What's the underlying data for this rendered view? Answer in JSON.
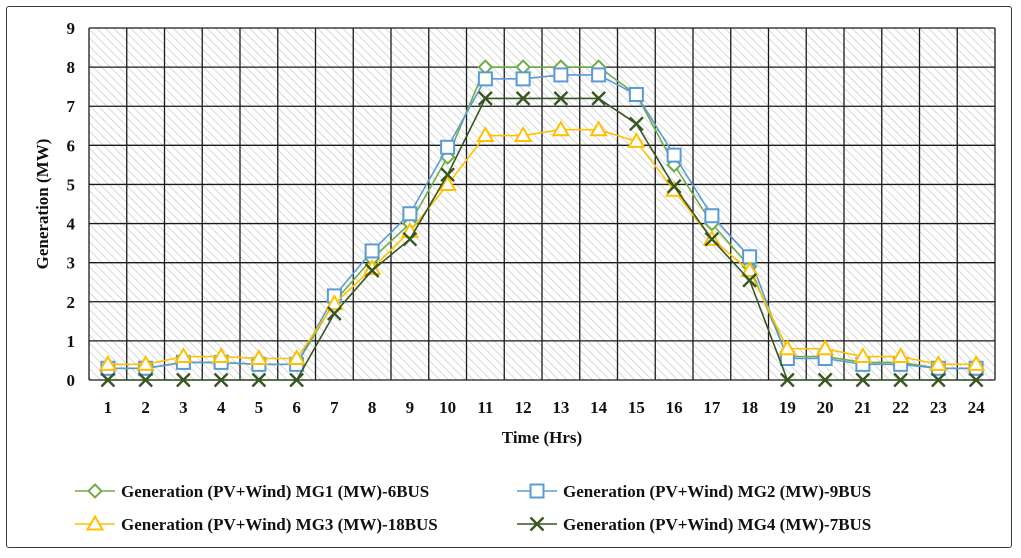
{
  "chart_data": {
    "type": "line",
    "title": "",
    "xlabel": "Time (Hrs)",
    "ylabel": "Generation (MW)",
    "ylim": [
      0,
      9
    ],
    "yticks": [
      "0",
      "1",
      "2",
      "3",
      "4",
      "5",
      "6",
      "7",
      "8",
      "9"
    ],
    "grid": true,
    "legend_position": "bottom",
    "categories": [
      "1",
      "2",
      "3",
      "4",
      "5",
      "6",
      "7",
      "8",
      "9",
      "10",
      "11",
      "12",
      "13",
      "14",
      "15",
      "16",
      "17",
      "18",
      "19",
      "20",
      "21",
      "22",
      "23",
      "24"
    ],
    "series": [
      {
        "name": "Generation (PV+Wind) MG1 (MW)-6BUS",
        "marker": "diamond",
        "color": "#70ad47",
        "values": [
          0.3,
          0.3,
          0.45,
          0.45,
          0.4,
          0.4,
          2.0,
          3.1,
          4.0,
          5.7,
          8.0,
          8.0,
          8.0,
          8.0,
          7.3,
          5.5,
          4.0,
          2.9,
          0.6,
          0.6,
          0.45,
          0.45,
          0.3,
          0.3
        ]
      },
      {
        "name": "Generation (PV+Wind) MG2 (MW)-9BUS",
        "marker": "square",
        "color": "#5b9bd5",
        "values": [
          0.3,
          0.3,
          0.45,
          0.45,
          0.4,
          0.4,
          2.15,
          3.3,
          4.25,
          5.95,
          7.7,
          7.7,
          7.8,
          7.8,
          7.3,
          5.75,
          4.2,
          3.15,
          0.55,
          0.55,
          0.4,
          0.4,
          0.3,
          0.3
        ]
      },
      {
        "name": "Generation (PV+Wind) MG3 (MW)-18BUS",
        "marker": "triangle",
        "color": "#ffc000",
        "values": [
          0.4,
          0.4,
          0.6,
          0.6,
          0.55,
          0.55,
          1.95,
          2.85,
          3.8,
          5.0,
          6.25,
          6.25,
          6.4,
          6.4,
          6.1,
          4.85,
          3.6,
          2.8,
          0.8,
          0.8,
          0.6,
          0.6,
          0.4,
          0.4
        ]
      },
      {
        "name": "Generation (PV+Wind) MG4 (MW)-7BUS",
        "marker": "x",
        "color": "#375623",
        "values": [
          0,
          0,
          0,
          0,
          0,
          0,
          1.7,
          2.8,
          3.6,
          5.25,
          7.2,
          7.2,
          7.2,
          7.2,
          6.55,
          4.95,
          3.6,
          2.55,
          0,
          0,
          0,
          0,
          0,
          0
        ]
      }
    ]
  }
}
